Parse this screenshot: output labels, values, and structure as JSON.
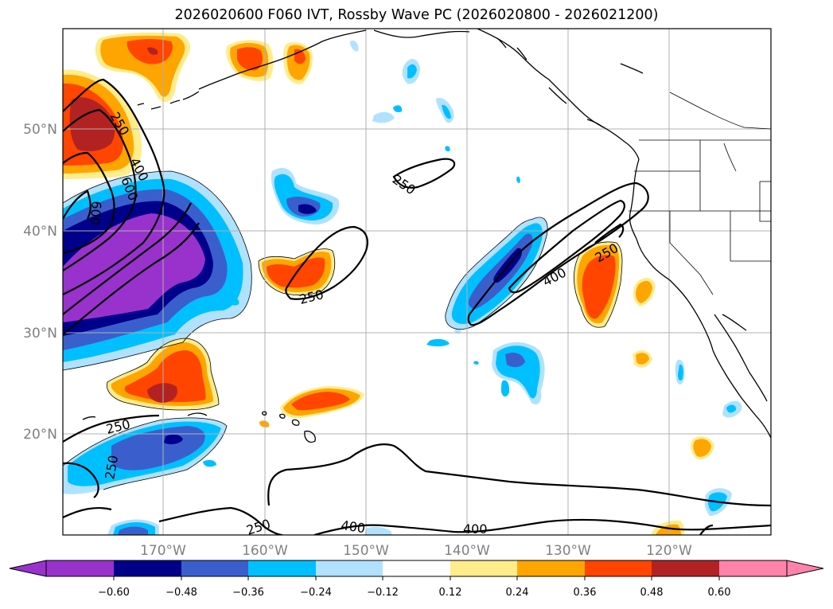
{
  "title": "2026020600 F060 IVT, Rossby Wave PC (2026020800 - 2026021200)",
  "lat_labels": [
    "50°N",
    "40°N",
    "30°N",
    "20°N"
  ],
  "lon_labels": [
    "170°W",
    "160°W",
    "150°W",
    "140°W",
    "130°W",
    "120°W"
  ],
  "contour_labels": [
    "250",
    "400",
    "600",
    "600",
    "250",
    "250",
    "400",
    "250",
    "250",
    "250",
    "250",
    "400",
    "400"
  ],
  "colorbar": {
    "ticks": [
      "−0.60",
      "−0.48",
      "−0.36",
      "−0.24",
      "−0.12",
      "0.12",
      "0.24",
      "0.36",
      "0.48",
      "0.60"
    ],
    "colors": [
      "#9932CC",
      "#00008B",
      "#3A5FCD",
      "#00BFFF",
      "#B0E2FF",
      "#FFFFFF",
      "#FFEC8B",
      "#FFA500",
      "#FF4500",
      "#B22222",
      "#FF82AB"
    ]
  },
  "colors": {
    "neg_strong": "#9932CC",
    "neg_dark": "#00008B",
    "neg_mid": "#3A5FCD",
    "neg_light": "#00BFFF",
    "neg_pale": "#B0E2FF",
    "pos_pale": "#FFEC8B",
    "pos_light": "#FFA500",
    "pos_mid": "#FF4500",
    "pos_dark": "#B22222",
    "pos_strong": "#FF82AB"
  }
}
